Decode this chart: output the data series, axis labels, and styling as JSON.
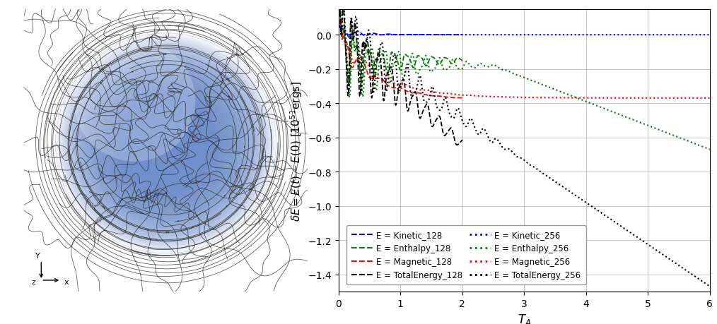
{
  "plot_bgcolor": "#ffffff",
  "ylabel": "$\\delta E = E(t) - E(0)$ [$10^{51}$ergs]",
  "xlabel": "$T_A$",
  "xlim": [
    0,
    6
  ],
  "ylim": [
    -1.5,
    0.15
  ],
  "yticks": [
    0.0,
    -0.2,
    -0.4,
    -0.6,
    -0.8,
    -1.0,
    -1.2,
    -1.4
  ],
  "xticks": [
    0,
    1,
    2,
    3,
    4,
    5,
    6
  ],
  "sphere_color": "#7090cc",
  "sphere_alpha": 0.7,
  "field_line_color": "#282828",
  "legend_entries_128": [
    {
      "label": "E = Kinetic_128",
      "color": "blue",
      "ls": "--"
    },
    {
      "label": "E = Enthalpy_128",
      "color": "green",
      "ls": "--"
    },
    {
      "label": "E = Magnetic_128",
      "color": "red",
      "ls": "--"
    },
    {
      "label": "E = TotalEnergy_128",
      "color": "black",
      "ls": "--"
    }
  ],
  "legend_entries_256": [
    {
      "label": "E = Kinetic_256",
      "color": "blue",
      "ls": ":"
    },
    {
      "label": "E = Enthalpy_256",
      "color": "green",
      "ls": ":"
    },
    {
      "label": "E = Magnetic_256",
      "color": "red",
      "ls": ":"
    },
    {
      "label": "E = TotalEnergy_256",
      "color": "black",
      "ls": ":"
    }
  ]
}
